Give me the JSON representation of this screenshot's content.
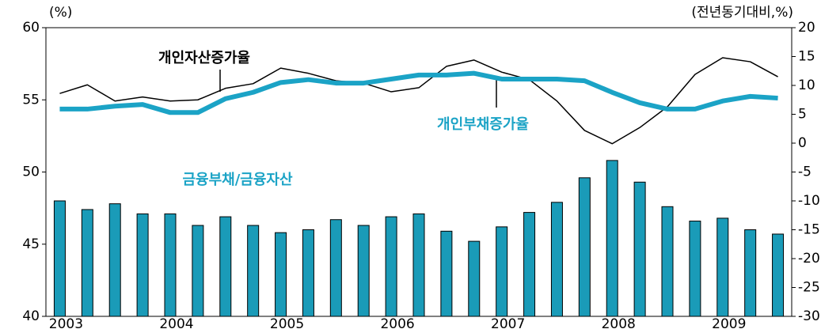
{
  "chart_data": {
    "type": "bar-line",
    "y_label": "(%)",
    "y2_label": "(전년동기대비,%)",
    "categories": [
      "2003",
      null,
      null,
      null,
      "2004",
      null,
      null,
      null,
      "2005",
      null,
      null,
      null,
      "2006",
      null,
      null,
      null,
      "2007",
      null,
      null,
      null,
      "2008",
      null,
      null,
      null,
      "2009",
      null,
      null
    ],
    "ylim": [
      40,
      60
    ],
    "yticks": [
      40,
      45,
      50,
      55,
      60
    ],
    "y2lim": [
      -30,
      20
    ],
    "y2ticks": [
      -30,
      -25,
      -20,
      -15,
      -10,
      -5,
      0,
      5,
      10,
      15,
      20
    ],
    "series": [
      {
        "name": "금융부채/금융자산",
        "type": "bar",
        "color": "#1a9bb8",
        "values": [
          48.0,
          47.4,
          47.8,
          47.1,
          47.1,
          46.3,
          46.9,
          46.3,
          45.8,
          46.0,
          46.7,
          46.3,
          46.9,
          47.1,
          45.9,
          45.2,
          46.2,
          47.2,
          47.9,
          49.6,
          50.8,
          49.3,
          47.6,
          46.6,
          46.8,
          46.0,
          45.7
        ]
      },
      {
        "name": "개인자산증가율",
        "type": "line",
        "axis": "y2",
        "color": "#000000",
        "values": [
          8.6,
          10.1,
          7.3,
          8.0,
          7.3,
          7.5,
          9.5,
          10.3,
          13.0,
          12.1,
          10.8,
          10.4,
          8.9,
          9.6,
          13.3,
          14.4,
          12.3,
          11.0,
          7.3,
          2.2,
          -0.1,
          2.7,
          6.3,
          11.9,
          14.8,
          14.1,
          11.5
        ]
      },
      {
        "name": "개인부채증가율",
        "type": "line",
        "axis": "y2",
        "color": "#1ba3c6",
        "values": [
          5.9,
          5.9,
          6.4,
          6.7,
          5.3,
          5.3,
          7.7,
          8.8,
          10.5,
          11.0,
          10.4,
          10.4,
          11.1,
          11.8,
          11.8,
          12.1,
          11.1,
          11.1,
          11.1,
          10.8,
          8.8,
          7.0,
          5.9,
          5.9,
          7.3,
          8.1,
          7.8
        ]
      }
    ]
  }
}
